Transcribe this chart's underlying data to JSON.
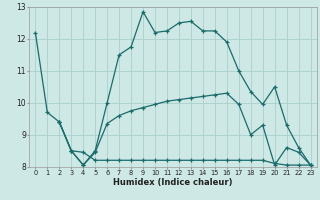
{
  "xlabel": "Humidex (Indice chaleur)",
  "bg_color": "#cde8e5",
  "line_color": "#1a6b6b",
  "grid_color": "#aacfcc",
  "xlim": [
    -0.5,
    23.5
  ],
  "ylim": [
    8,
    13
  ],
  "line1_upper": {
    "x": [
      0,
      1,
      2,
      3,
      4,
      5,
      6,
      7,
      8,
      9,
      10,
      11,
      12,
      13,
      14,
      15,
      16,
      17,
      18,
      19,
      20,
      21,
      22,
      23
    ],
    "y": [
      12.2,
      9.7,
      9.4,
      8.5,
      8.05,
      8.5,
      10.0,
      11.5,
      11.75,
      12.85,
      12.2,
      12.25,
      12.5,
      12.55,
      12.25,
      12.25,
      11.9,
      11.0,
      10.35,
      9.95,
      10.5,
      9.3,
      8.6,
      8.05
    ]
  },
  "line2_mid": {
    "x": [
      2,
      3,
      4,
      5,
      6,
      7,
      8,
      9,
      10,
      11,
      12,
      13,
      14,
      15,
      16,
      17,
      18,
      19,
      20,
      21,
      22,
      23
    ],
    "y": [
      9.4,
      8.5,
      8.05,
      8.45,
      9.35,
      9.6,
      9.75,
      9.85,
      9.95,
      10.05,
      10.1,
      10.15,
      10.2,
      10.25,
      10.3,
      9.95,
      9.0,
      9.3,
      8.05,
      8.6,
      8.45,
      8.05
    ]
  },
  "line3_lower": {
    "x": [
      2,
      3,
      4,
      5,
      6,
      7,
      8,
      9,
      10,
      11,
      12,
      13,
      14,
      15,
      16,
      17,
      18,
      19,
      20,
      21,
      22,
      23
    ],
    "y": [
      9.4,
      8.5,
      8.45,
      8.2,
      8.2,
      8.2,
      8.2,
      8.2,
      8.2,
      8.2,
      8.2,
      8.2,
      8.2,
      8.2,
      8.2,
      8.2,
      8.2,
      8.2,
      8.1,
      8.05,
      8.05,
      8.05
    ]
  }
}
